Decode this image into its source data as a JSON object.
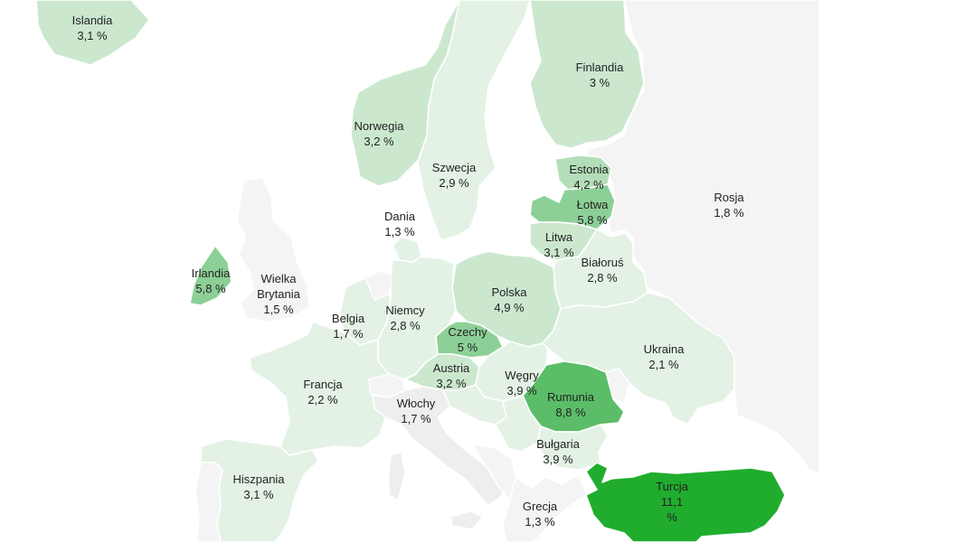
{
  "map": {
    "legend_colors": {
      "no_data": "#f4f4f4",
      "no_data_dark": "#eeeeee",
      "level_1": "#e3f2e5",
      "level_2": "#cbe8cf",
      "level_3": "#b3deb9",
      "level_4": "#8dd097",
      "level_5": "#5bbd68",
      "level_6": "#20ad2e"
    },
    "countries": [
      {
        "key": "islandia",
        "name": "Islandia",
        "value": "3,1 %"
      },
      {
        "key": "norwegia",
        "name": "Norwegia",
        "value": "3,2 %"
      },
      {
        "key": "szwecja",
        "name": "Szwecja",
        "value": "2,9 %"
      },
      {
        "key": "finlandia",
        "name": "Finlandia",
        "value": "3 %"
      },
      {
        "key": "estonia",
        "name": "Estonia",
        "value": "4,2 %"
      },
      {
        "key": "lotwa",
        "name": "Łotwa",
        "value": "5,8 %"
      },
      {
        "key": "litwa",
        "name": "Litwa",
        "value": "3,1 %"
      },
      {
        "key": "rosja",
        "name": "Rosja",
        "value": "1,8 %"
      },
      {
        "key": "dania",
        "name": "Dania",
        "value": "1,3 %"
      },
      {
        "key": "irlandia",
        "name": "Irlandia",
        "value": "5,8 %"
      },
      {
        "key": "wielka_brytania",
        "name": "Wielka Brytania",
        "value": "1,5 %"
      },
      {
        "key": "bialorus",
        "name": "Białoruś",
        "value": "2,8 %"
      },
      {
        "key": "polska",
        "name": "Polska",
        "value": "4,9 %"
      },
      {
        "key": "niemcy",
        "name": "Niemcy",
        "value": "2,8 %"
      },
      {
        "key": "belgia",
        "name": "Belgia",
        "value": "1,7 %"
      },
      {
        "key": "czechy",
        "name": "Czechy",
        "value": "5 %"
      },
      {
        "key": "ukraina",
        "name": "Ukraina",
        "value": "2,1 %"
      },
      {
        "key": "austria",
        "name": "Austria",
        "value": "3,2 %"
      },
      {
        "key": "wegry",
        "name": "Węgry",
        "value": "3,9 %"
      },
      {
        "key": "francja",
        "name": "Francja",
        "value": "2,2 %"
      },
      {
        "key": "rumunia",
        "name": "Rumunia",
        "value": "8,8 %"
      },
      {
        "key": "wlochy",
        "name": "Włochy",
        "value": "1,7 %"
      },
      {
        "key": "bulgaria",
        "name": "Bułgaria",
        "value": "3,9 %"
      },
      {
        "key": "hiszpania",
        "name": "Hiszpania",
        "value": "3,1 %"
      },
      {
        "key": "turcja",
        "name": "Turcja",
        "value": "11,1 %"
      },
      {
        "key": "grecja",
        "name": "Grecja",
        "value": "1,3 %"
      }
    ]
  }
}
